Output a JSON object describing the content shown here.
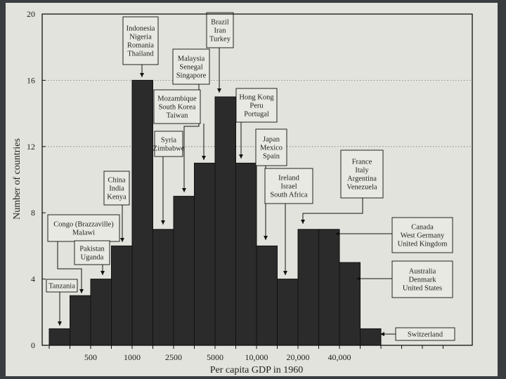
{
  "chart_data": {
    "type": "bar",
    "xlabel": "Per capita GDP in 1960",
    "ylabel": "Number of countries",
    "ylim": [
      0,
      20
    ],
    "y_ticks": [
      0,
      4,
      8,
      12,
      16,
      20
    ],
    "x_tick_labels": [
      "500",
      "1000",
      "2500",
      "5000",
      "10,000",
      "20,000",
      "40,000"
    ],
    "grid": "dotted horizontal lines at 16 and 12",
    "colors": {
      "bar": "#2b2b2b",
      "page": "#e3e3dd"
    },
    "values": [
      1,
      3,
      4,
      6,
      16,
      7,
      9,
      11,
      15,
      11,
      6,
      4,
      7,
      7,
      5,
      1
    ],
    "annotations": [
      {
        "bar": 0,
        "lines": [
          "Tanzania"
        ]
      },
      {
        "bar": 1,
        "lines": [
          "Congo (Brazzaville)",
          "Malawi"
        ]
      },
      {
        "bar": 2,
        "lines": [
          "Pakistan",
          "Uganda"
        ]
      },
      {
        "bar": 3,
        "lines": [
          "China",
          "India",
          "Kenya"
        ]
      },
      {
        "bar": 4,
        "lines": [
          "Indonesia",
          "Nigeria",
          "Romania",
          "Thailand"
        ]
      },
      {
        "bar": 5,
        "lines": [
          "Syria",
          "Zimbabwe"
        ]
      },
      {
        "bar": 6,
        "lines": [
          "Mozambique",
          "South Korea",
          "Taiwan"
        ]
      },
      {
        "bar": 7,
        "lines": [
          "Malaysia",
          "Senegal",
          "Singapore"
        ]
      },
      {
        "bar": 8,
        "lines": [
          "Brazil",
          "Iran",
          "Turkey"
        ]
      },
      {
        "bar": 9,
        "lines": [
          "Hong Kong",
          "Peru",
          "Portugal"
        ]
      },
      {
        "bar": 10,
        "lines": [
          "Japan",
          "Mexico",
          "Spain"
        ]
      },
      {
        "bar": 11,
        "lines": [
          "Ireland",
          "Israel",
          "South Africa"
        ]
      },
      {
        "bar": 12,
        "lines": [
          "France",
          "Italy",
          "Argentina",
          "Venezuela"
        ]
      },
      {
        "bar": 13,
        "lines": [
          "Canada",
          "West Germany",
          "United Kingdom"
        ]
      },
      {
        "bar": 14,
        "lines": [
          "Australia",
          "Denmark",
          "United States"
        ]
      },
      {
        "bar": 15,
        "lines": [
          "Switzerland"
        ]
      }
    ]
  }
}
